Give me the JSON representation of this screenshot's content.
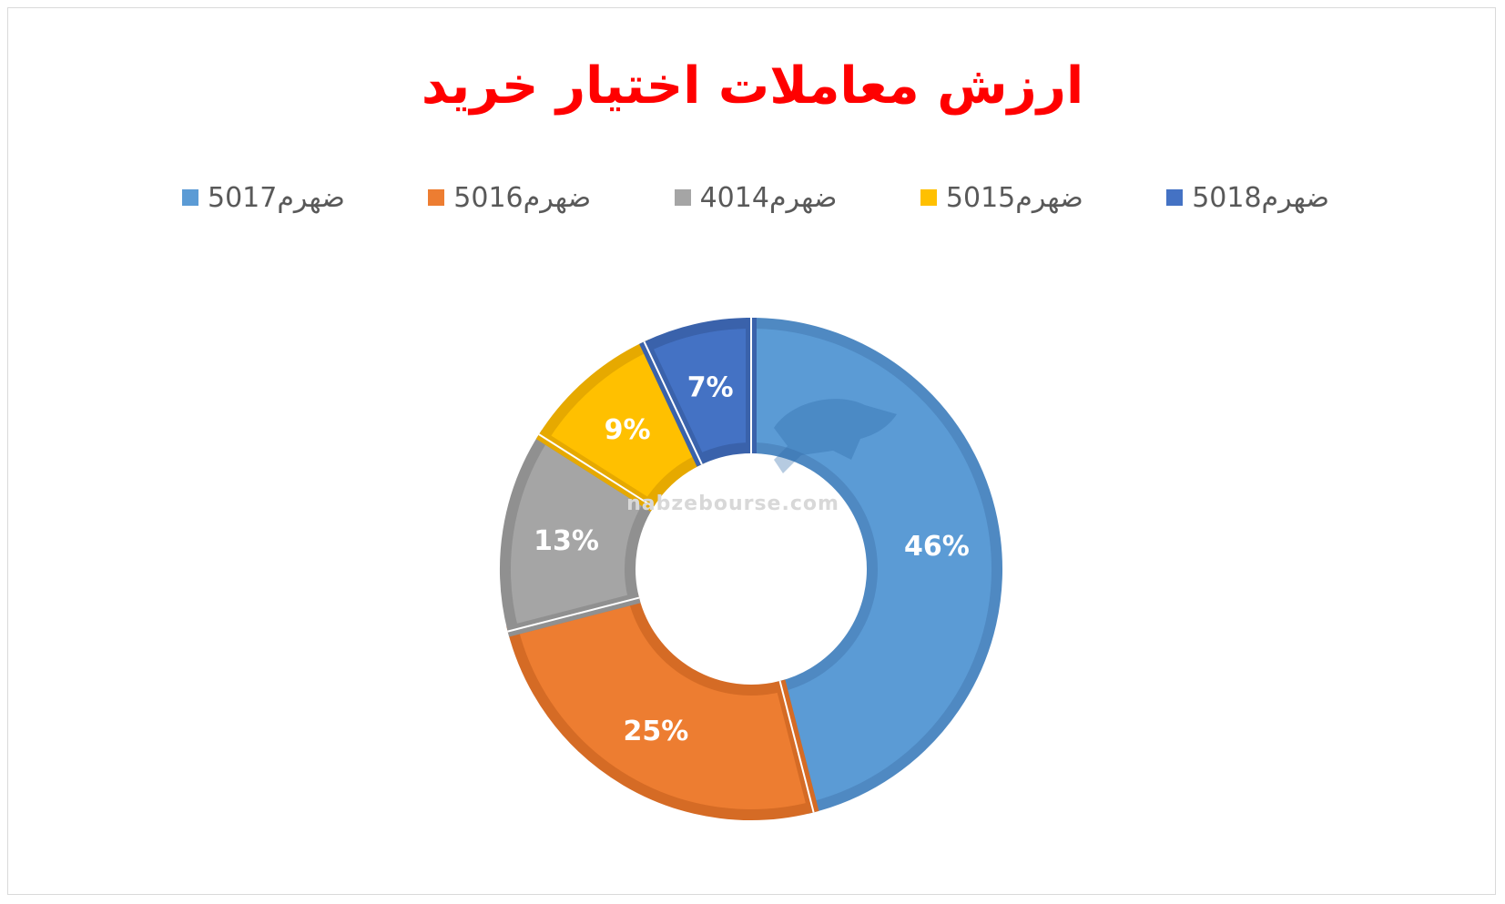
{
  "chart_data": {
    "type": "donut",
    "title": "ارزش معاملات اختیار خرید",
    "categories": [
      "ضهرم5017",
      "ضهرم5016",
      "ضهرم4014",
      "ضهرم5015",
      "ضهرم5018"
    ],
    "values": [
      46,
      25,
      13,
      9,
      7
    ],
    "labels": [
      "46%",
      "25%",
      "13%",
      "9%",
      "7%"
    ],
    "unit": "%",
    "colors": [
      "#5b9bd5",
      "#ed7d31",
      "#a5a5a5",
      "#ffc000",
      "#4472c4"
    ],
    "border_colors": [
      "#4f89c2",
      "#d56b25",
      "#909090",
      "#e6a900",
      "#3a62ab"
    ],
    "legend_position": "top"
  },
  "watermark": {
    "url": "nabzebourse.com",
    "logo_icon": "bull-icon"
  }
}
